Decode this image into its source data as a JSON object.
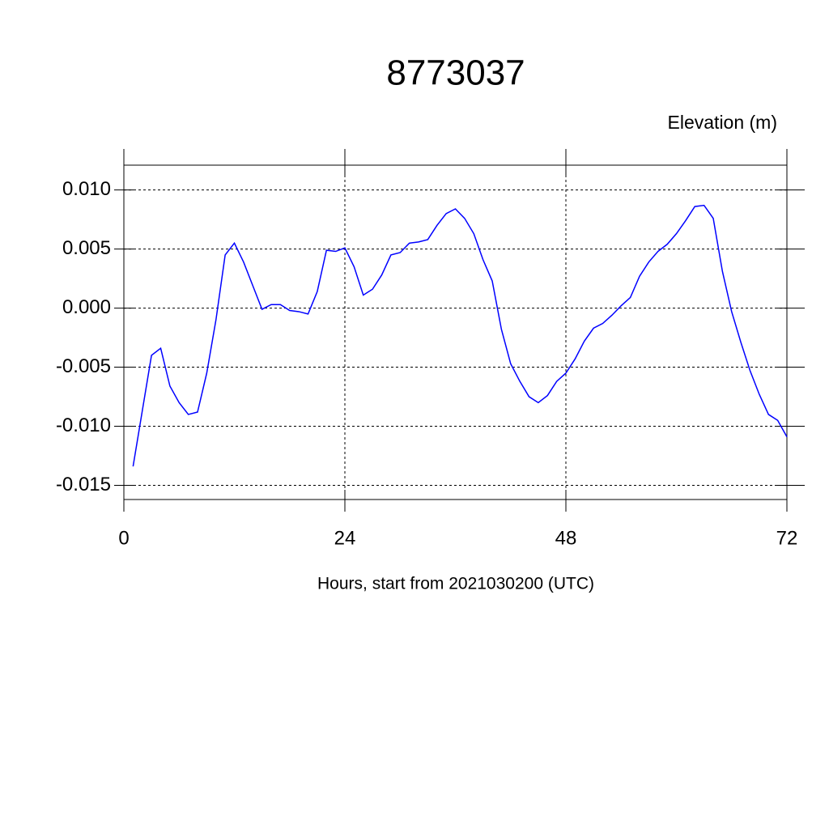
{
  "chart_data": {
    "type": "line",
    "title": "8773037",
    "y_axis_title": "Elevation (m)",
    "x_axis_title": "Hours, start from 2021030200 (UTC)",
    "x": [
      1,
      2,
      3,
      4,
      5,
      6,
      7,
      8,
      9,
      10,
      11,
      12,
      13,
      14,
      15,
      16,
      17,
      18,
      19,
      20,
      21,
      22,
      23,
      24,
      25,
      26,
      27,
      28,
      29,
      30,
      31,
      32,
      33,
      34,
      35,
      36,
      37,
      38,
      39,
      40,
      41,
      42,
      43,
      44,
      45,
      46,
      47,
      48,
      49,
      50,
      51,
      52,
      53,
      54,
      55,
      56,
      57,
      58,
      59,
      60,
      61,
      62,
      63,
      64,
      65,
      66,
      67,
      68,
      69,
      70,
      71,
      72
    ],
    "series": [
      {
        "name": "Elevation",
        "color": "#0000ff",
        "values": [
          -0.0134,
          -0.0087,
          -0.004,
          -0.0034,
          -0.0066,
          -0.008,
          -0.009,
          -0.0088,
          -0.0055,
          -0.001,
          0.0045,
          0.0055,
          0.0039,
          0.0019,
          -0.0001,
          0.0003,
          0.0003,
          -0.0002,
          -0.0003,
          -0.0005,
          0.0014,
          0.0049,
          0.0048,
          0.0051,
          0.0035,
          0.0011,
          0.0016,
          0.0028,
          0.0045,
          0.0047,
          0.0055,
          0.0056,
          0.0058,
          0.007,
          0.008,
          0.0084,
          0.0076,
          0.0063,
          0.0041,
          0.0023,
          -0.0018,
          -0.0047,
          -0.0062,
          -0.0075,
          -0.008,
          -0.0074,
          -0.0062,
          -0.0055,
          -0.0043,
          -0.0028,
          -0.0017,
          -0.0013,
          -0.0006,
          0.0002,
          0.0009,
          0.0027,
          0.0039,
          0.0048,
          0.0054,
          0.0063,
          0.0074,
          0.0086,
          0.0087,
          0.0076,
          0.0031,
          -0.0003,
          -0.0029,
          -0.0053,
          -0.0073,
          -0.009,
          -0.0095,
          -0.0109
        ]
      }
    ],
    "xlim": [
      0,
      72
    ],
    "xticks": [
      0,
      24,
      48,
      72
    ],
    "ylim": [
      -0.0162,
      0.0121
    ],
    "yticks": [
      {
        "value": -0.015,
        "label": "-0.015"
      },
      {
        "value": -0.01,
        "label": "-0.010"
      },
      {
        "value": -0.005,
        "label": "-0.005"
      },
      {
        "value": 0,
        "label": "0.000"
      },
      {
        "value": 0.005,
        "label": "0.005"
      },
      {
        "value": 0.01,
        "label": "0.010"
      }
    ],
    "grid": true
  }
}
